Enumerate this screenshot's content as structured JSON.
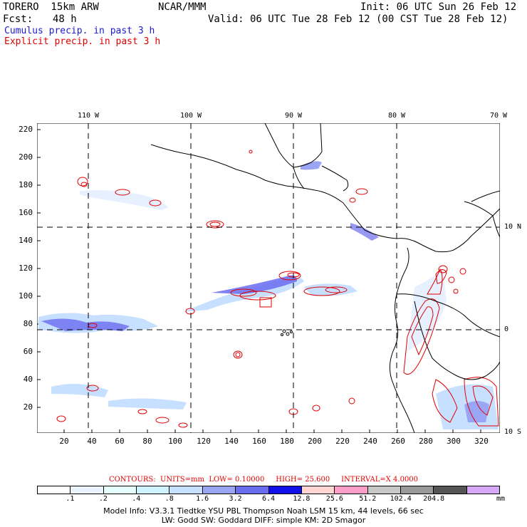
{
  "header": {
    "model": "TORERO  15km ARW",
    "org": "NCAR/MMM",
    "init": "Init: 06 UTC Sun 26 Feb 12",
    "fcst_label": "Fcst:",
    "fcst_value": "48 h",
    "valid": "Valid: 06 UTC Tue 28 Feb 12 (00 CST Tue 28 Feb 12)"
  },
  "legend": {
    "cumulus": "Cumulus precip. in past 3 h",
    "explicit": "Explicit precip. in past 3 h",
    "cumulus_color": "#1a1ad0",
    "explicit_color": "#e00000"
  },
  "axes": {
    "y_ticks": [
      "220",
      "200",
      "180",
      "160",
      "140",
      "120",
      "100",
      "80",
      "60",
      "40",
      "20"
    ],
    "x_ticks": [
      "20",
      "40",
      "60",
      "80",
      "100",
      "120",
      "140",
      "160",
      "180",
      "200",
      "220",
      "240",
      "260",
      "280",
      "300",
      "320"
    ],
    "lon_labels": [
      "110 W",
      "100 W",
      "90 W",
      "80 W",
      "70 W"
    ],
    "lat_labels": [
      "10 N",
      "0",
      "10 S"
    ]
  },
  "contours": {
    "label": "CONTOURS:",
    "units": "UNITS=mm",
    "low": "LOW= 0.10000",
    "high": "HIGH=  25.600",
    "interval": "INTERVAL=X  4.0000"
  },
  "colorbar": {
    "colors": [
      "#ffffff",
      "#eaf4ff",
      "#e6ffff",
      "#d0f4ff",
      "#c8e0ff",
      "#9aa6f5",
      "#6a6cf0",
      "#1010e8",
      "#ffd6d6",
      "#ff9ec8",
      "#c8c8c8",
      "#999999",
      "#555555",
      "#d8a8f8"
    ],
    "labels": [
      ".1",
      ".2",
      ".4",
      ".8",
      "1.6",
      "3.2",
      "6.4",
      "12.8",
      "25.6",
      "51.2",
      "102.4",
      "204.8"
    ],
    "units": "mm"
  },
  "footer": {
    "line1": "Model Info: V3.3.1    Tiedtke YSU PBL  Thompson    Noah LSM  15 km,    44 levels,    66 sec",
    "line2": "LW: Godd SW: Goddard DIFF: simple KM: 2D Smagor"
  }
}
